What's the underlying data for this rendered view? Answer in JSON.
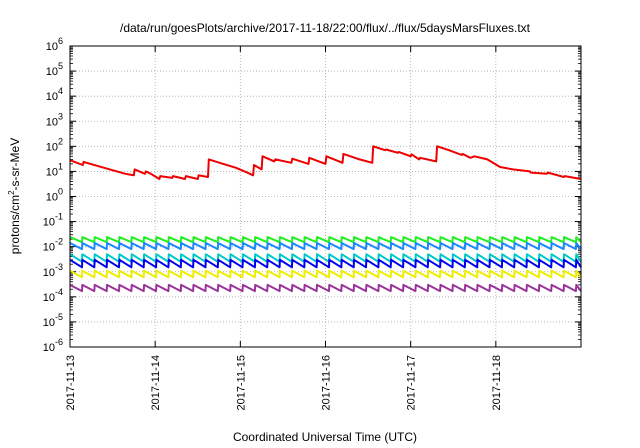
{
  "chart_data": {
    "type": "line",
    "title": "/data/run/goesPlots/archive/2017-11-18/22:00/flux/../flux/5daysMarsFluxes.txt",
    "xlabel": "Coordinated Universal Time (UTC)",
    "ylabel": {
      "prefix": "protons/cm",
      "sup": "2",
      "suffix": "-s-sr-MeV"
    },
    "scale_y": "log",
    "ylim": [
      1e-06,
      1000000.0
    ],
    "xlim": [
      0,
      6
    ],
    "grid": true,
    "x_ticks": [
      {
        "x": 0,
        "label": "2017-11-13"
      },
      {
        "x": 1,
        "label": "2017-11-14"
      },
      {
        "x": 2,
        "label": "2017-11-15"
      },
      {
        "x": 3,
        "label": "2017-11-16"
      },
      {
        "x": 4,
        "label": "2017-11-17"
      },
      {
        "x": 5,
        "label": "2017-11-18"
      }
    ],
    "y_ticks": [
      {
        "exp": 6,
        "label": "10",
        "sup": "6"
      },
      {
        "exp": 5,
        "label": "10",
        "sup": "5"
      },
      {
        "exp": 4,
        "label": "10",
        "sup": "4"
      },
      {
        "exp": 3,
        "label": "10",
        "sup": "3"
      },
      {
        "exp": 2,
        "label": "10",
        "sup": "2"
      },
      {
        "exp": 1,
        "label": "10",
        "sup": "1"
      },
      {
        "exp": 0,
        "label": "10",
        "sup": "0"
      },
      {
        "exp": -1,
        "label": "10",
        "sup": "-1"
      },
      {
        "exp": -2,
        "label": "10",
        "sup": "-2"
      },
      {
        "exp": -3,
        "label": "10",
        "sup": "-3"
      },
      {
        "exp": -4,
        "label": "10",
        "sup": "-4"
      },
      {
        "exp": -5,
        "label": "10",
        "sup": "-5"
      },
      {
        "exp": -6,
        "label": "10",
        "sup": "-6"
      }
    ],
    "series": [
      {
        "color": "#ee0000",
        "points": [
          [
            0.0,
            28
          ],
          [
            0.15,
            18
          ],
          [
            0.16,
            24
          ],
          [
            0.4,
            14
          ],
          [
            0.65,
            8
          ],
          [
            0.75,
            7
          ],
          [
            0.76,
            12
          ],
          [
            0.88,
            8
          ],
          [
            0.89,
            10
          ],
          [
            0.95,
            8
          ],
          [
            1.05,
            5
          ],
          [
            1.06,
            6.5
          ],
          [
            1.2,
            5.5
          ],
          [
            1.21,
            6.5
          ],
          [
            1.35,
            5
          ],
          [
            1.36,
            6.5
          ],
          [
            1.5,
            5
          ],
          [
            1.51,
            7
          ],
          [
            1.62,
            6
          ],
          [
            1.63,
            30
          ],
          [
            1.8,
            20
          ],
          [
            1.95,
            14
          ],
          [
            2.05,
            10
          ],
          [
            2.15,
            7
          ],
          [
            2.16,
            18
          ],
          [
            2.25,
            12
          ],
          [
            2.26,
            40
          ],
          [
            2.4,
            25
          ],
          [
            2.41,
            30
          ],
          [
            2.6,
            22
          ],
          [
            2.61,
            32
          ],
          [
            2.8,
            20
          ],
          [
            2.81,
            35
          ],
          [
            3.0,
            20
          ],
          [
            3.01,
            40
          ],
          [
            3.2,
            22
          ],
          [
            3.21,
            50
          ],
          [
            3.4,
            30
          ],
          [
            3.55,
            22
          ],
          [
            3.56,
            100
          ],
          [
            3.7,
            70
          ],
          [
            3.71,
            75
          ],
          [
            3.85,
            55
          ],
          [
            3.86,
            60
          ],
          [
            4.0,
            40
          ],
          [
            4.01,
            48
          ],
          [
            4.1,
            30
          ],
          [
            4.11,
            35
          ],
          [
            4.3,
            25
          ],
          [
            4.31,
            100
          ],
          [
            4.45,
            70
          ],
          [
            4.6,
            45
          ],
          [
            4.61,
            50
          ],
          [
            4.7,
            35
          ],
          [
            4.75,
            40
          ],
          [
            4.9,
            30
          ],
          [
            5.05,
            15
          ],
          [
            5.2,
            12
          ],
          [
            5.4,
            10
          ],
          [
            5.41,
            9
          ],
          [
            5.6,
            8
          ],
          [
            5.61,
            9
          ],
          [
            5.8,
            6
          ],
          [
            5.81,
            6.5
          ],
          [
            6.0,
            5
          ]
        ]
      },
      {
        "color": "#22ee22",
        "sawtooth": {
          "hi": 0.024,
          "lo": 0.015,
          "period": 0.145
        }
      },
      {
        "color": "#1a88ff",
        "sawtooth": {
          "hi": 0.014,
          "lo": 0.008,
          "period": 0.145
        }
      },
      {
        "color": "#00c8c8",
        "sawtooth": {
          "hi": 0.005,
          "lo": 0.0025,
          "period": 0.145
        }
      },
      {
        "color": "#0000ee",
        "sawtooth": {
          "hi": 0.003,
          "lo": 0.0015,
          "period": 0.145
        }
      },
      {
        "color": "#eeee00",
        "sawtooth": {
          "hi": 0.0011,
          "lo": 0.0006,
          "period": 0.145
        }
      },
      {
        "color": "#993399",
        "sawtooth": {
          "hi": 0.0003,
          "lo": 0.00017,
          "period": 0.145
        }
      }
    ]
  }
}
